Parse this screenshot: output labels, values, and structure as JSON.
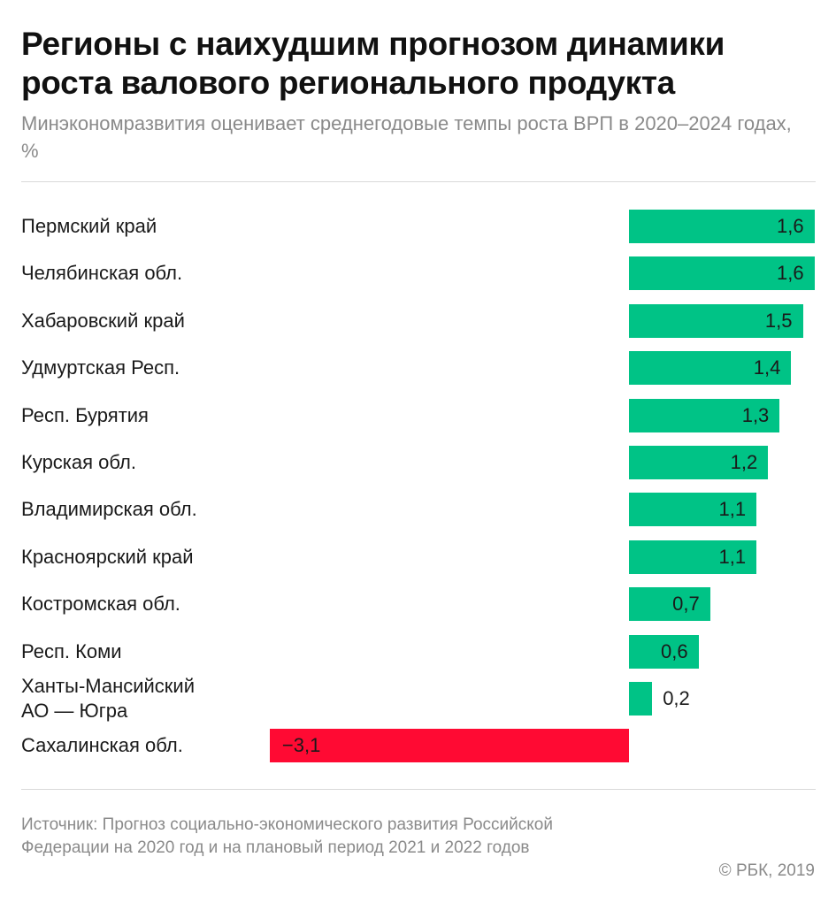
{
  "chart_data": {
    "type": "bar",
    "orientation": "horizontal",
    "title": "Регионы с наихудшим прогнозом динамики роста валового регионального продукта",
    "subtitle": "Минэкономразвития оценивает среднегодовые темпы роста ВРП в 2020–2024 годах, %",
    "categories": [
      "Пермский край",
      "Челябинская обл.",
      "Хабаровский край",
      "Удмуртская Респ.",
      "Респ. Бурятия",
      "Курская обл.",
      "Владимирская обл.",
      "Красноярский край",
      "Костромская обл.",
      "Респ. Коми",
      "Ханты-Мансийский\nАО — Югра",
      "Сахалинская обл."
    ],
    "values": [
      1.6,
      1.6,
      1.5,
      1.4,
      1.3,
      1.2,
      1.1,
      1.1,
      0.7,
      0.6,
      0.2,
      -3.1
    ],
    "value_labels": [
      "1,6",
      "1,6",
      "1,5",
      "1,4",
      "1,3",
      "1,2",
      "1,1",
      "1,1",
      "0,7",
      "0,6",
      "0,2",
      "−3,1"
    ],
    "colors": {
      "positive": "#00c386",
      "negative": "#ff0a33"
    },
    "grid": false,
    "legend": "none"
  },
  "source": "Источник: Прогноз социально-экономического развития Российской Федерации на 2020 год и на плановый период 2021 и 2022 годов",
  "copyright": "© РБК, 2019"
}
